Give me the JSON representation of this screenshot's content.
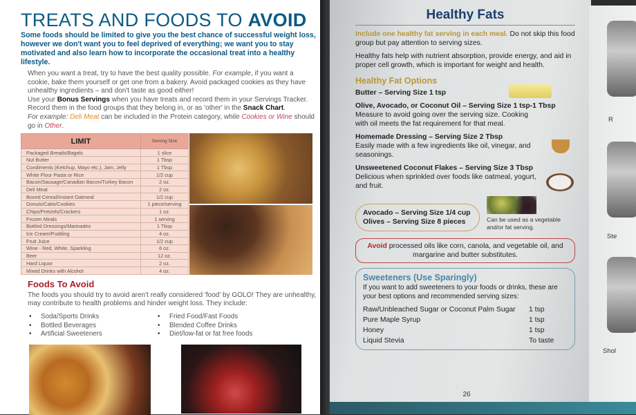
{
  "left_page": {
    "title_regular": "TREATS AND FOODS TO ",
    "title_bold": "AVOID",
    "subtitle": "Some foods should be limited to give you the best chance of successful weight loss, however we don't want you to feel deprived of everything; we want you to stay motivated and also learn how to incorporate the occasional treat into a healthy lifestyle.",
    "p1_a": "When you want a treat, try to have the best quality possible. ",
    "p1_em": "For example",
    "p1_b": ", if you want a cookie, bake them yourself or get one from a bakery. Avoid packaged cookies as they have unhealthy ingredients – and don't taste as good either!",
    "p2_a": "Use your ",
    "p2_bold1": "Bonus Servings",
    "p2_b": " when you have treats and record them in your Servings Tracker. Record them in the food groups that they belong in, or as 'other' in the ",
    "p2_bold2": "Snack Chart",
    "p2_c": ".",
    "p3_em": "For example: ",
    "p3_orange": "Deli Meat",
    "p3_b": " can be included in the Protein category, while ",
    "p3_rose1": "Cookies or Wine",
    "p3_c": " should go in ",
    "p3_rose2": "Other",
    "p3_d": ".",
    "table": {
      "headers": [
        "LIMIT",
        "Serving Size"
      ],
      "rows": [
        [
          "Packaged Breads/Bagels",
          "1 slice"
        ],
        [
          "Nut Butter",
          "1 Tbsp"
        ],
        [
          "Condiments (Ketchup, Mayo etc.), Jam, Jelly",
          "1 Tbsp"
        ],
        [
          "White Flour Pasta or Rice",
          "1/2 cup"
        ],
        [
          "Bacon/Sausage/Canadian Bacon/Turkey Bacon",
          "2 oz."
        ],
        [
          "Deli Meat",
          "2 oz."
        ],
        [
          "Boxed Cereal/Instant Oatmeal",
          "1/2 cup"
        ],
        [
          "Donuts/Cake/Cookies",
          "1 piece/serving"
        ],
        [
          "Chips/Pretzels/Crackers",
          "1 oz."
        ],
        [
          "Frozen Meals",
          "1 serving"
        ],
        [
          "Bottled Dressings/Marinades",
          "1 Tbsp"
        ],
        [
          "Ice Cream/Pudding",
          "4 oz."
        ],
        [
          "Fruit Juice",
          "1/2 cup"
        ],
        [
          "Wine - Red, White, Sparkling",
          "6 oz."
        ],
        [
          "Beer",
          "12 oz."
        ],
        [
          "Hard Liquor",
          "2 oz."
        ],
        [
          "Mixed Drinks with Alcohol",
          "4 oz."
        ]
      ]
    },
    "avoid_heading": "Foods To Avoid",
    "avoid_text": "The foods you should try to avoid aren't really considered 'food' by GOLO! They are unhealthy, may contribute to health problems and hinder weight loss. They include:",
    "avoid_col1": [
      "Soda/Sports Drinks",
      "Bottled Beverages",
      "Artificial Sweeteners"
    ],
    "avoid_col2": [
      "Fried Food/Fast Foods",
      "Blended Coffee Drinks",
      "Diet/low-fat or fat free foods"
    ]
  },
  "right_page": {
    "title": "Healthy Fats",
    "intro_gold": "Include one healthy fat serving in each meal.",
    "intro_rest": " Do not skip this food group but pay attention to serving sizes.",
    "para": "Healthy fats help with nutrient absorption, provide energy, and aid in proper cell growth, which is important for weight and health.",
    "options_heading": "Healthy Fat Options",
    "options": [
      {
        "title": "Butter – Serving Size 1 tsp",
        "desc": ""
      },
      {
        "title": "Olive, Avocado, or Coconut Oil – Serving Size 1 tsp-1 Tbsp",
        "desc": "Measure to avoid going over the serving size. Cooking with oil meets the fat requirement for that meal."
      },
      {
        "title": "Homemade Dressing – Serving Size 2 Tbsp",
        "desc": "Easily made with a few ingredients like oil, vinegar, and seasonings."
      },
      {
        "title": "Unsweetened Coconut Flakes – Serving Size 3 Tbsp",
        "desc": "Delicious when sprinkled over foods like oatmeal, yogurt, and fruit."
      }
    ],
    "bubble": [
      "Avocado – Serving Size 1/4 cup",
      "Olives – Serving Size 8 pieces"
    ],
    "bubble_note": "Can be used as a vegetable and/or fat serving.",
    "avoid_word": "Avoid",
    "avoid_rest": " processed oils like corn, canola, and vegetable oil, and margarine and butter substitutes.",
    "sweet_title": "Sweeteners (Use Sparingly)",
    "sweet_text": "If you want to add sweeteners to your foods or drinks, these are your best options and recommended serving sizes:",
    "sweet_rows": [
      [
        "Raw/Unbleached Sugar or Coconut Palm Sugar",
        "1 tsp"
      ],
      [
        "Pure Maple Syrup",
        "1 tsp"
      ],
      [
        "Honey",
        "1 tsp"
      ],
      [
        "Liquid Stevia",
        "To taste"
      ]
    ],
    "page_number": "26"
  },
  "next_page_labels": [
    "R",
    "Ste",
    "Shol"
  ]
}
